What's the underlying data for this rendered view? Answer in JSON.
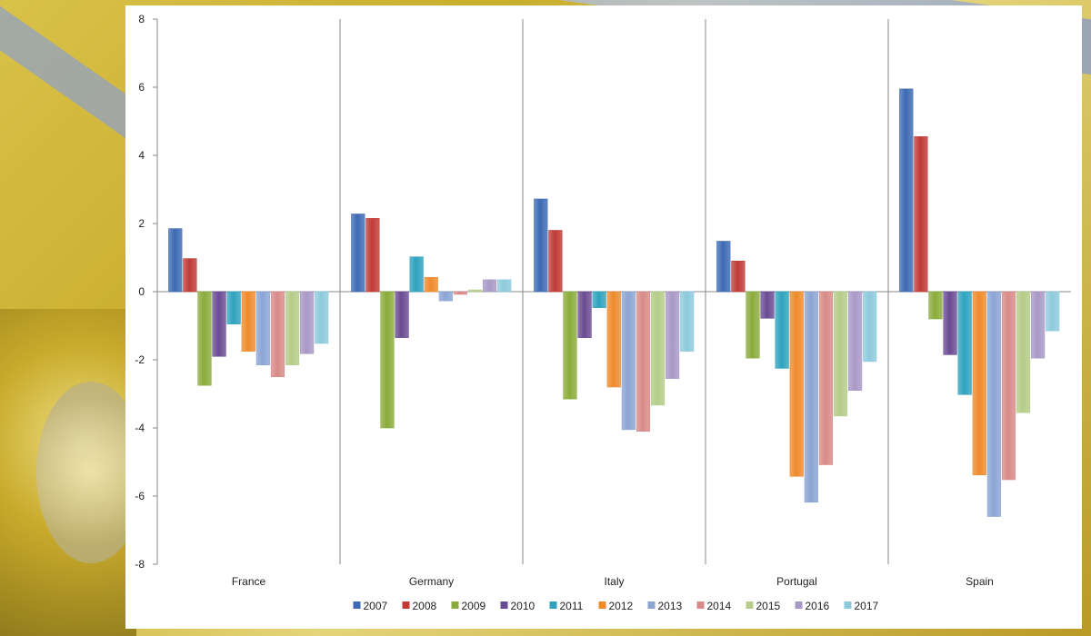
{
  "chart_data": {
    "type": "bar",
    "categories": [
      "France",
      "Germany",
      "Italy",
      "Portugal",
      "Spain"
    ],
    "series": [
      {
        "name": "2007",
        "color": "#3c6ab4",
        "values": [
          1.85,
          2.28,
          2.72,
          1.48,
          5.95
        ]
      },
      {
        "name": "2008",
        "color": "#c03a36",
        "values": [
          0.97,
          2.15,
          1.8,
          0.9,
          4.55
        ]
      },
      {
        "name": "2009",
        "color": "#8aab3a",
        "values": [
          -2.75,
          -4.0,
          -3.15,
          -1.95,
          -0.8
        ]
      },
      {
        "name": "2010",
        "color": "#6a4a92",
        "values": [
          -1.9,
          -1.35,
          -1.35,
          -0.78,
          -1.85
        ]
      },
      {
        "name": "2011",
        "color": "#2ea2bd",
        "values": [
          -0.95,
          1.02,
          -0.47,
          -2.25,
          -3.02
        ]
      },
      {
        "name": "2012",
        "color": "#ee8a2c",
        "values": [
          -1.75,
          0.42,
          -2.8,
          -5.42,
          -5.38
        ]
      },
      {
        "name": "2013",
        "color": "#8aa4d4",
        "values": [
          -2.15,
          -0.27,
          -4.05,
          -6.18,
          -6.6
        ]
      },
      {
        "name": "2014",
        "color": "#d88a88",
        "values": [
          -2.5,
          -0.08,
          -4.1,
          -5.08,
          -5.52
        ]
      },
      {
        "name": "2015",
        "color": "#b4cc88",
        "values": [
          -2.15,
          0.05,
          -3.33,
          -3.65,
          -3.55
        ]
      },
      {
        "name": "2016",
        "color": "#a898c6",
        "values": [
          -1.82,
          0.35,
          -2.55,
          -2.9,
          -1.95
        ]
      },
      {
        "name": "2017",
        "color": "#8ccadc",
        "values": [
          -1.52,
          0.35,
          -1.75,
          -2.05,
          -1.15
        ]
      }
    ],
    "ylim": [
      -8,
      8
    ],
    "yticks": [
      8,
      6,
      4,
      2,
      0,
      -2,
      -4,
      -6,
      -8
    ],
    "grid": false,
    "legend_position": "bottom",
    "title": "",
    "xlabel": "",
    "ylabel": ""
  }
}
